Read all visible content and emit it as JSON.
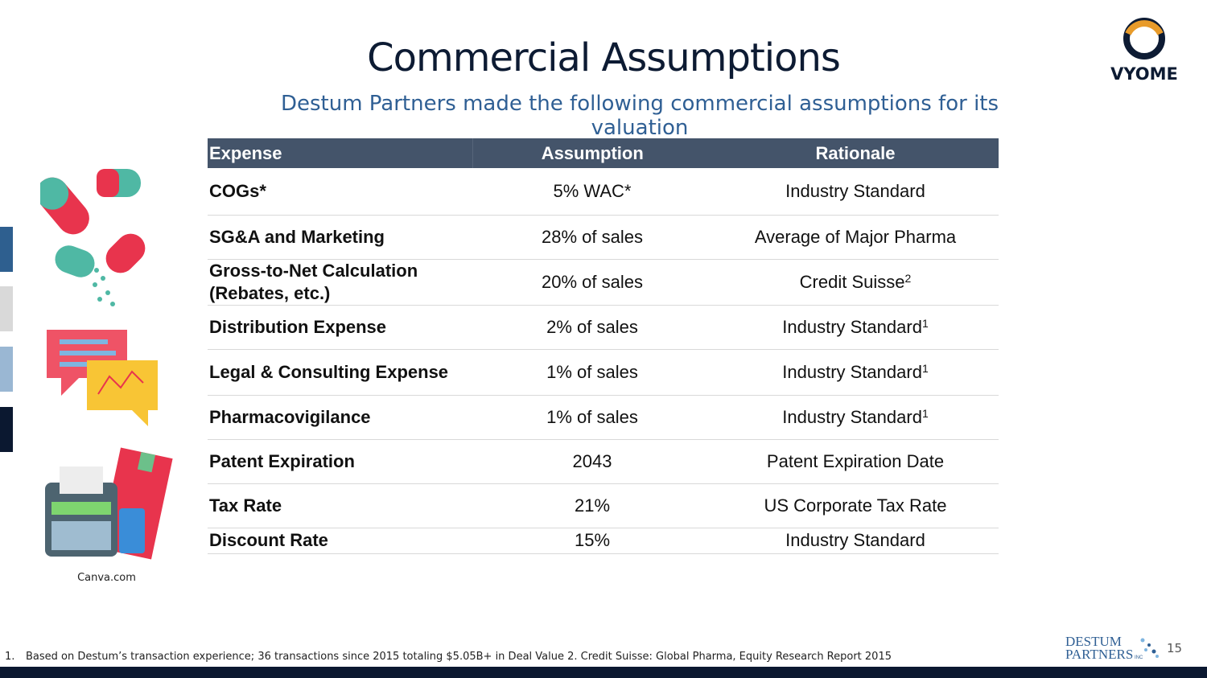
{
  "header": {
    "title": "Commercial Assumptions",
    "subtitle": "Destum Partners made the following commercial assumptions for its valuation",
    "logo_text": "VYOME"
  },
  "table": {
    "columns": [
      "Expense",
      "Assumption",
      "Rationale"
    ],
    "rows": [
      {
        "expense": "COGs*",
        "expense2": "",
        "assumption": "5% WAC*",
        "rationale": "Industry Standard",
        "sup": ""
      },
      {
        "expense": "SG&A and Marketing",
        "expense2": "",
        "assumption": "28% of sales",
        "rationale": "Average of Major Pharma",
        "sup": ""
      },
      {
        "expense": "Gross-to-Net Calculation",
        "expense2": "(Rebates, etc.)",
        "assumption": "20% of sales",
        "rationale": "Credit Suisse",
        "sup": "2"
      },
      {
        "expense": "Distribution Expense",
        "expense2": "",
        "assumption": "2% of sales",
        "rationale": "Industry Standard",
        "sup": "1"
      },
      {
        "expense": "Legal & Consulting Expense",
        "expense2": "",
        "assumption": "1% of sales",
        "rationale": "Industry Standard",
        "sup": "1"
      },
      {
        "expense": "Pharmacovigilance",
        "expense2": "",
        "assumption": "1% of sales",
        "rationale": "Industry Standard",
        "sup": "1"
      },
      {
        "expense": "Patent Expiration",
        "expense2": "",
        "assumption": "2043",
        "rationale": "Patent Expiration Date",
        "sup": ""
      },
      {
        "expense": "Tax Rate",
        "expense2": "",
        "assumption": "21%",
        "rationale": "US Corporate Tax Rate",
        "sup": ""
      },
      {
        "expense": "Discount Rate",
        "expense2": "",
        "assumption": "15%",
        "rationale": "Industry Standard",
        "sup": ""
      }
    ]
  },
  "image_credit": "Canva.com",
  "footnote": {
    "number": "1.",
    "text": "Based on Destum’s transaction experience; 36 transactions since 2015 totaling $5.05B+ in Deal Value  2. Credit Suisse: Global Pharma, Equity Research Report 2015"
  },
  "footer": {
    "brand_line1": "DESTUM",
    "brand_line2": "PARTNERS",
    "brand_suffix": "INC",
    "page_number": "15"
  },
  "colors": {
    "title": "#0d1b33",
    "subtitle": "#2f5f94",
    "table_header": "#44546a",
    "side_bars": [
      "#2e5f8f",
      "#d9d9d9",
      "#9ab7d3",
      "#0b1830"
    ]
  }
}
